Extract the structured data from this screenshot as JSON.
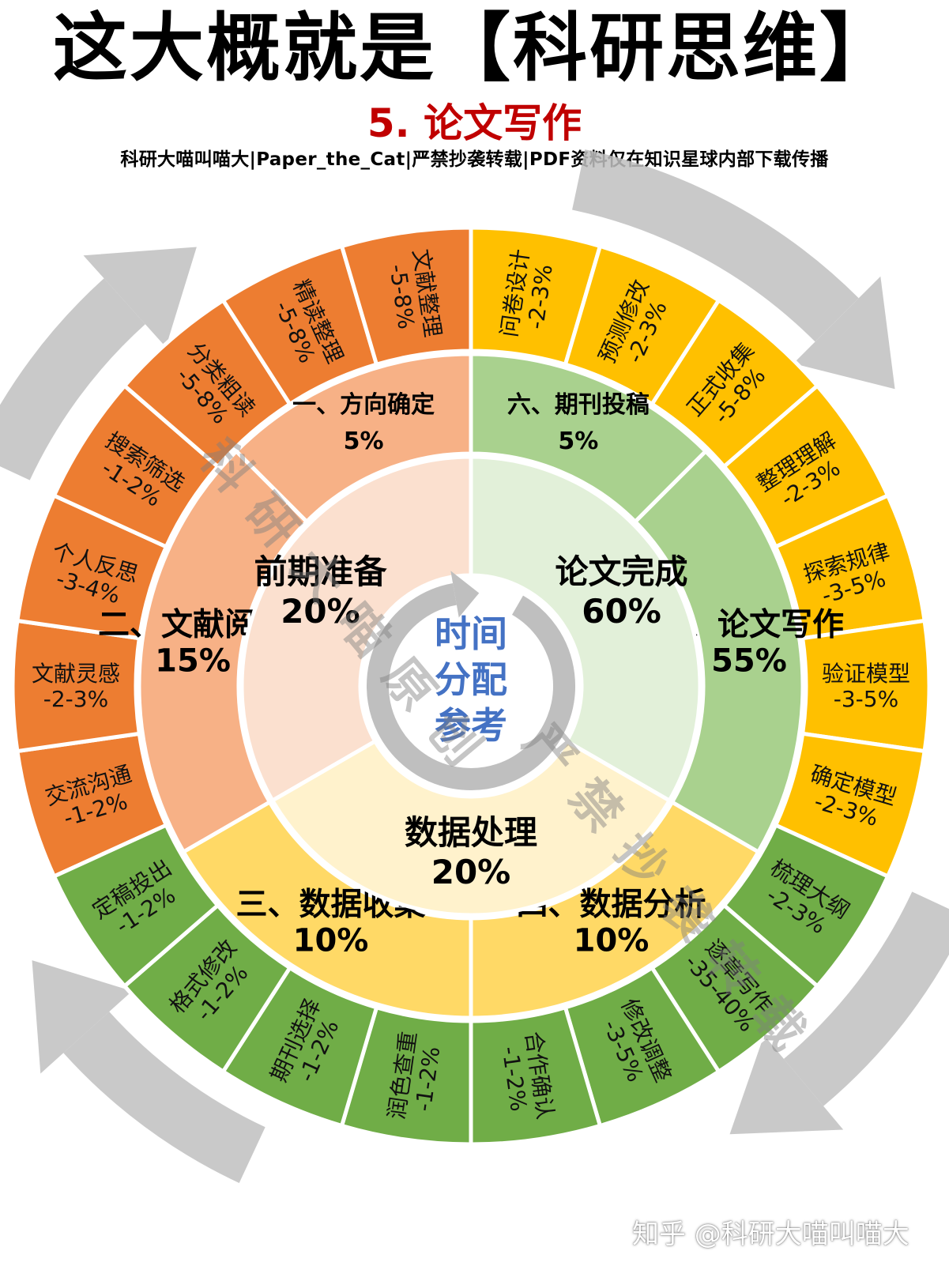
{
  "header": {
    "title": "这大概就是【科研思维】",
    "subtitle": "5. 论文写作",
    "credit": "科研大喵叫喵大|Paper_the_Cat|严禁抄袭转载|PDF资料仅在知识星球内部下载传播"
  },
  "center": {
    "lines": [
      "时间",
      "分配",
      "参考"
    ]
  },
  "colors": {
    "orange_outer": "#ed7d31",
    "orange_mid": "#f7b186",
    "orange_inner": "#fbe0cf",
    "green_outer": "#70ad47",
    "green_mid": "#a9d18e",
    "green_inner": "#e2f0d9",
    "yellow_outer": "#ffc000",
    "yellow_mid": "#ffd966",
    "yellow_inner": "#fff2cc",
    "center_text": "#4472c4",
    "arrow": "#bfbfbf"
  },
  "inner_ring": [
    {
      "label": "前期准备",
      "percent": "20%",
      "color": "orange_inner"
    },
    {
      "label": "论文完成",
      "percent": "60%",
      "color": "green_inner"
    },
    {
      "label": "数据处理",
      "percent": "20%",
      "color": "yellow_inner"
    }
  ],
  "middle_ring": [
    {
      "label": "一、方向确定",
      "percent": "5%",
      "color": "orange_mid"
    },
    {
      "label": "二、文献阅读",
      "percent": "15%",
      "color": "orange_mid"
    },
    {
      "label": "三、数据收集",
      "percent": "10%",
      "color": "yellow_mid"
    },
    {
      "label": "四、数据分析",
      "percent": "10%",
      "color": "yellow_mid"
    },
    {
      "label": "五、论文写作",
      "percent": "55%",
      "color": "green_mid"
    },
    {
      "label": "六、期刊投稿",
      "percent": "5%",
      "color": "green_mid"
    }
  ],
  "outer_ring": [
    {
      "label": "交流沟通",
      "range": "-1-2%",
      "color": "orange_outer"
    },
    {
      "label": "文献灵感",
      "range": "-2-3%",
      "color": "orange_outer"
    },
    {
      "label": "个人反思",
      "range": "-3-4%",
      "color": "orange_outer"
    },
    {
      "label": "搜索筛选",
      "range": "-1-2%",
      "color": "orange_outer"
    },
    {
      "label": "分类粗读",
      "range": "-5-8%",
      "color": "orange_outer"
    },
    {
      "label": "精读整理",
      "range": "-5-8%",
      "color": "orange_outer"
    },
    {
      "label": "文献整理",
      "range": "-5-8%",
      "color": "orange_outer"
    },
    {
      "label": "问卷设计",
      "range": "-2-3%",
      "color": "yellow_outer"
    },
    {
      "label": "预测修改",
      "range": "-2-3%",
      "color": "yellow_outer"
    },
    {
      "label": "正式收集",
      "range": "-5-8%",
      "color": "yellow_outer"
    },
    {
      "label": "整理理解",
      "range": "-2-3%",
      "color": "yellow_outer"
    },
    {
      "label": "探索规律",
      "range": "-3-5%",
      "color": "yellow_outer"
    },
    {
      "label": "验证模型",
      "range": "-3-5%",
      "color": "yellow_outer"
    },
    {
      "label": "确定模型",
      "range": "-2-3%",
      "color": "yellow_outer"
    },
    {
      "label": "梳理大纲",
      "range": "-2-3%",
      "color": "green_outer"
    },
    {
      "label": "逐章写作",
      "range": "-35-40%",
      "color": "green_outer"
    },
    {
      "label": "修改调整",
      "range": "-3-5%",
      "color": "green_outer"
    },
    {
      "label": "合作确认",
      "range": "-1-2%",
      "color": "green_outer"
    },
    {
      "label": "润色查重",
      "range": "-1-2%",
      "color": "green_outer"
    },
    {
      "label": "期刊选择",
      "range": "-1-2%",
      "color": "green_outer"
    },
    {
      "label": "格式修改",
      "range": "-1-2%",
      "color": "green_outer"
    },
    {
      "label": "定稿投出",
      "range": "-1-2%",
      "color": "green_outer"
    }
  ],
  "watermark": {
    "text_a": "科研大喵原创",
    "text_b": "严禁抄袭转载",
    "zhihu": "知乎 @科研大喵叫喵大"
  }
}
